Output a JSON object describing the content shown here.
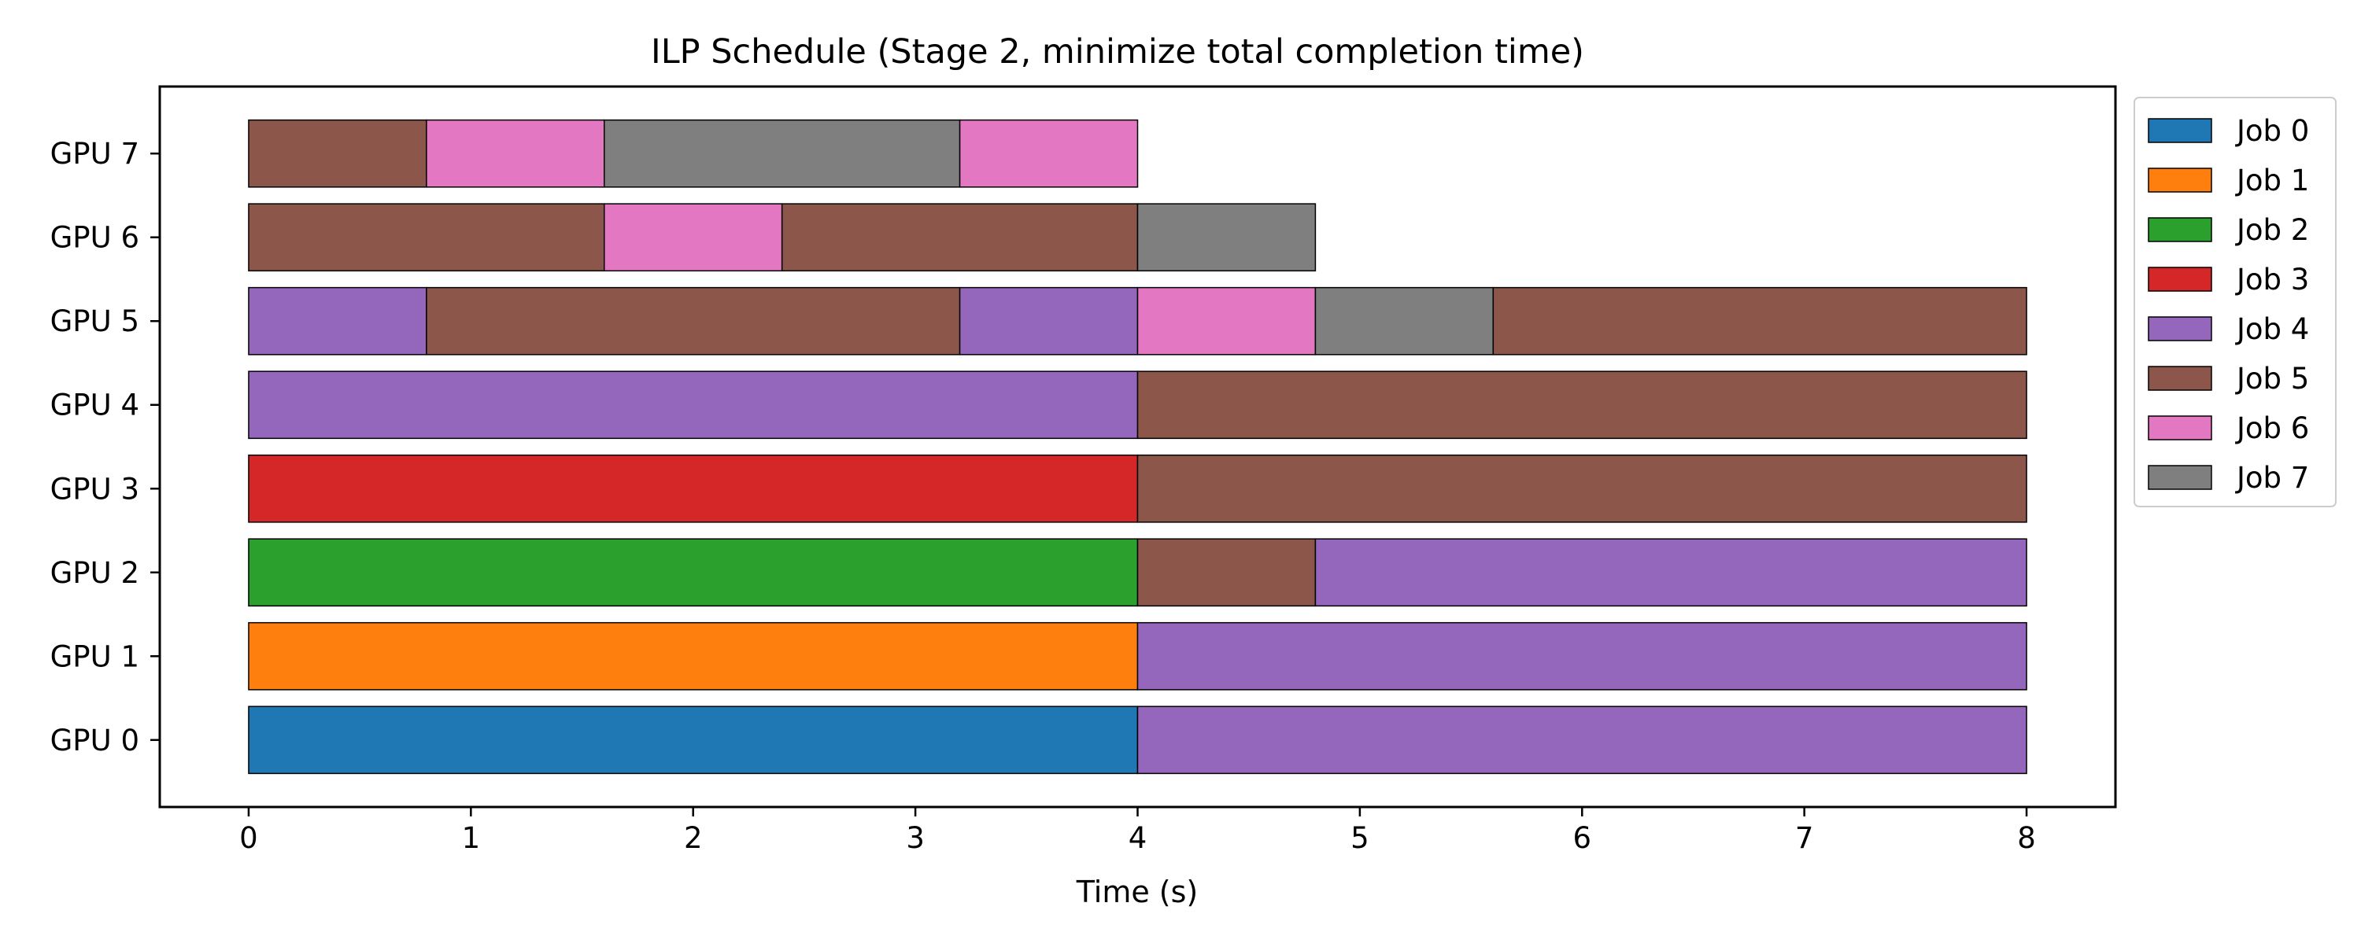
{
  "chart_data": {
    "type": "gantt",
    "title": "ILP Schedule (Stage 2, minimize total completion time)",
    "xlabel": "Time (s)",
    "ylabel": "",
    "xlim": [
      -0.4,
      8.4
    ],
    "x_ticks": [
      0,
      1,
      2,
      3,
      4,
      5,
      6,
      7,
      8
    ],
    "grid": false,
    "legend_position": "outside right, top",
    "rows": [
      "GPU 0",
      "GPU 1",
      "GPU 2",
      "GPU 3",
      "GPU 4",
      "GPU 5",
      "GPU 6",
      "GPU 7"
    ],
    "jobs": [
      {
        "name": "Job 0",
        "color": "#1f77b4"
      },
      {
        "name": "Job 1",
        "color": "#ff7f0e"
      },
      {
        "name": "Job 2",
        "color": "#2ca02c"
      },
      {
        "name": "Job 3",
        "color": "#d62728"
      },
      {
        "name": "Job 4",
        "color": "#9467bd"
      },
      {
        "name": "Job 5",
        "color": "#8c564b"
      },
      {
        "name": "Job 6",
        "color": "#e377c2"
      },
      {
        "name": "Job 7",
        "color": "#7f7f7f"
      }
    ],
    "segments": [
      {
        "gpu": 0,
        "job": 0,
        "start": 0,
        "end": 4
      },
      {
        "gpu": 0,
        "job": 4,
        "start": 4,
        "end": 8
      },
      {
        "gpu": 1,
        "job": 1,
        "start": 0,
        "end": 4
      },
      {
        "gpu": 1,
        "job": 4,
        "start": 4,
        "end": 8
      },
      {
        "gpu": 2,
        "job": 2,
        "start": 0,
        "end": 4
      },
      {
        "gpu": 2,
        "job": 5,
        "start": 4,
        "end": 4.8
      },
      {
        "gpu": 2,
        "job": 4,
        "start": 4.8,
        "end": 8
      },
      {
        "gpu": 3,
        "job": 3,
        "start": 0,
        "end": 4
      },
      {
        "gpu": 3,
        "job": 5,
        "start": 4,
        "end": 8
      },
      {
        "gpu": 4,
        "job": 4,
        "start": 0,
        "end": 4
      },
      {
        "gpu": 4,
        "job": 5,
        "start": 4,
        "end": 8
      },
      {
        "gpu": 5,
        "job": 4,
        "start": 0,
        "end": 0.8
      },
      {
        "gpu": 5,
        "job": 5,
        "start": 0.8,
        "end": 3.2
      },
      {
        "gpu": 5,
        "job": 4,
        "start": 3.2,
        "end": 4
      },
      {
        "gpu": 5,
        "job": 6,
        "start": 4,
        "end": 4.8
      },
      {
        "gpu": 5,
        "job": 7,
        "start": 4.8,
        "end": 5.6
      },
      {
        "gpu": 5,
        "job": 5,
        "start": 5.6,
        "end": 8
      },
      {
        "gpu": 6,
        "job": 5,
        "start": 0,
        "end": 1.6
      },
      {
        "gpu": 6,
        "job": 6,
        "start": 1.6,
        "end": 2.4
      },
      {
        "gpu": 6,
        "job": 5,
        "start": 2.4,
        "end": 4
      },
      {
        "gpu": 6,
        "job": 7,
        "start": 4,
        "end": 4.8
      },
      {
        "gpu": 7,
        "job": 5,
        "start": 0,
        "end": 0.8
      },
      {
        "gpu": 7,
        "job": 6,
        "start": 0.8,
        "end": 1.6
      },
      {
        "gpu": 7,
        "job": 7,
        "start": 1.6,
        "end": 3.2
      },
      {
        "gpu": 7,
        "job": 6,
        "start": 3.2,
        "end": 4
      }
    ]
  }
}
